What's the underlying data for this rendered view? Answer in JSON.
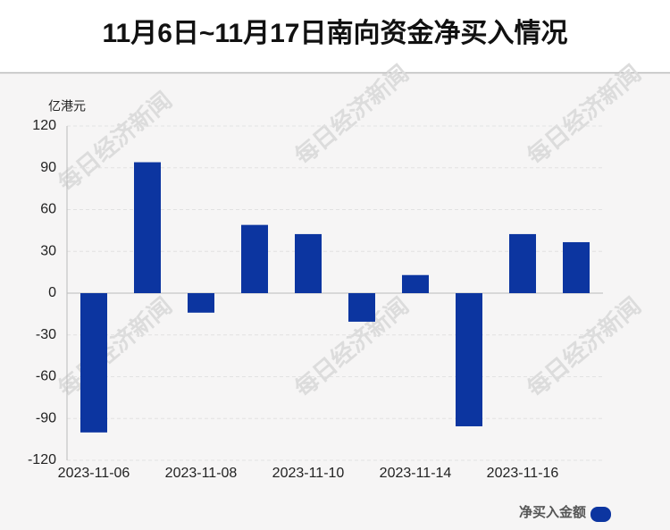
{
  "chart_data": {
    "type": "bar",
    "title": "11月6日~11月17日南向资金净买入情况",
    "y_unit": "亿港元",
    "watermark": "每日经济新闻",
    "categories": [
      "2023-11-06",
      null,
      "2023-11-08",
      null,
      "2023-11-10",
      null,
      "2023-11-14",
      null,
      "2023-11-16",
      null
    ],
    "series": [
      {
        "name": "净买入金额",
        "color": "#0c35a0",
        "values": [
          -100,
          94,
          -14,
          49,
          42.4,
          -20.5,
          13,
          -95.6,
          42.4,
          36.6
        ]
      }
    ],
    "ylim": [
      -120,
      120
    ],
    "yticks": [
      -120,
      -90,
      -60,
      -30,
      0,
      30,
      60,
      90,
      120
    ],
    "grid": true
  }
}
